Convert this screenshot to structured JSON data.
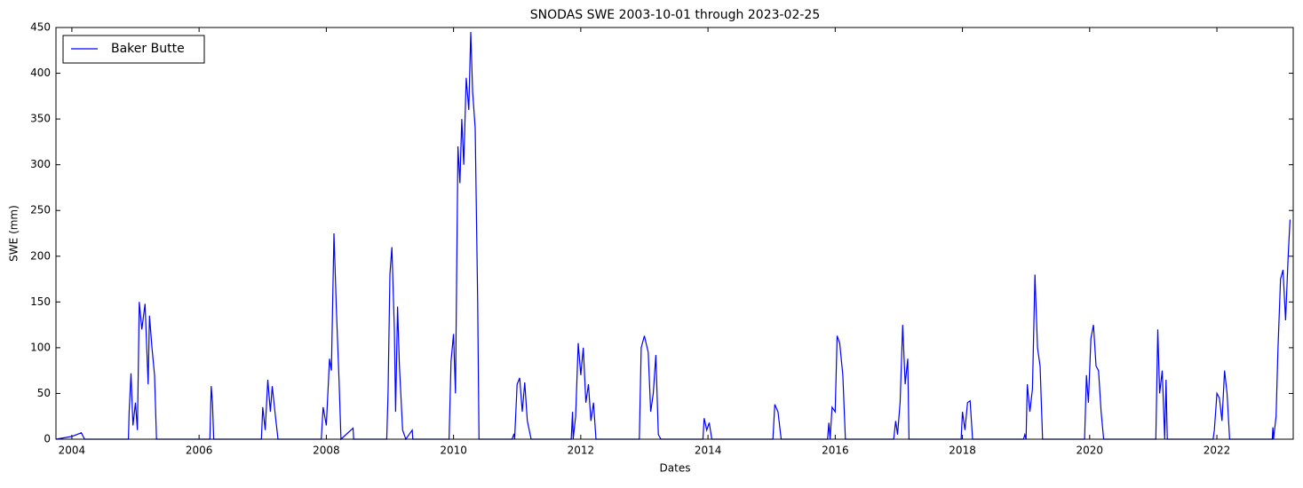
{
  "chart_data": {
    "type": "line",
    "title": "SNODAS SWE 2003-10-01 through 2023-02-25",
    "xlabel": "Dates",
    "ylabel": "SWE (mm)",
    "x": [
      2003.75,
      2004.0,
      2004.15,
      2004.2,
      2004.89,
      2004.9,
      2004.93,
      2004.96,
      2005.0,
      2005.03,
      2005.06,
      2005.1,
      2005.15,
      2005.2,
      2005.22,
      2005.26,
      2005.3,
      2005.33,
      2006.17,
      2006.19,
      2006.21,
      2006.23,
      2006.98,
      2007.0,
      2007.04,
      2007.08,
      2007.12,
      2007.15,
      2007.2,
      2007.24,
      2007.92,
      2007.95,
      2008.0,
      2008.05,
      2008.08,
      2008.12,
      2008.16,
      2008.2,
      2008.23,
      2008.42,
      2008.43,
      2008.95,
      2008.97,
      2009.0,
      2009.03,
      2009.07,
      2009.09,
      2009.12,
      2009.15,
      2009.2,
      2009.25,
      2009.35,
      2009.36,
      2009.93,
      2009.96,
      2010.0,
      2010.03,
      2010.07,
      2010.1,
      2010.13,
      2010.16,
      2010.2,
      2010.24,
      2010.27,
      2010.3,
      2010.34,
      2010.38,
      2010.4,
      2010.92,
      2010.95,
      2010.96,
      2011.0,
      2011.04,
      2011.08,
      2011.12,
      2011.16,
      2011.22,
      2011.85,
      2011.87,
      2011.88,
      2011.92,
      2011.96,
      2012.0,
      2012.04,
      2012.08,
      2012.12,
      2012.16,
      2012.2,
      2012.24,
      2012.92,
      2012.95,
      2013.0,
      2013.06,
      2013.1,
      2013.14,
      2013.18,
      2013.22,
      2013.26,
      2013.92,
      2013.94,
      2013.98,
      2014.02,
      2014.06,
      2015.02,
      2015.05,
      2015.1,
      2015.15,
      2015.88,
      2015.9,
      2015.92,
      2015.95,
      2016.0,
      2016.03,
      2016.07,
      2016.12,
      2016.16,
      2016.92,
      2016.95,
      2016.98,
      2017.02,
      2017.06,
      2017.1,
      2017.14,
      2017.16,
      2017.98,
      2018.0,
      2018.04,
      2018.08,
      2018.12,
      2018.16,
      2018.96,
      2018.98,
      2019.0,
      2019.02,
      2019.06,
      2019.1,
      2019.14,
      2019.18,
      2019.22,
      2019.26,
      2019.92,
      2019.95,
      2019.98,
      2020.02,
      2020.06,
      2020.1,
      2020.14,
      2020.18,
      2020.22,
      2021.04,
      2021.07,
      2021.1,
      2021.14,
      2021.18,
      2021.2,
      2021.22,
      2021.94,
      2021.96,
      2022.0,
      2022.04,
      2022.08,
      2022.12,
      2022.16,
      2022.2,
      2022.87,
      2022.88,
      2022.89,
      2022.93,
      2022.96,
      2023.0,
      2023.04,
      2023.08,
      2023.12,
      2023.15
    ],
    "series": [
      {
        "name": "Baker Butte",
        "color": "#0000ff",
        "values": [
          0,
          3,
          7,
          0,
          0,
          30,
          72,
          15,
          40,
          10,
          150,
          120,
          148,
          60,
          135,
          100,
          70,
          0,
          0,
          58,
          40,
          0,
          0,
          35,
          10,
          65,
          30,
          58,
          25,
          0,
          0,
          35,
          15,
          88,
          75,
          225,
          140,
          65,
          0,
          12,
          0,
          0,
          50,
          180,
          210,
          120,
          30,
          145,
          80,
          10,
          0,
          10,
          0,
          0,
          85,
          115,
          50,
          320,
          280,
          350,
          300,
          395,
          360,
          445,
          380,
          340,
          150,
          0,
          0,
          6,
          0,
          60,
          67,
          30,
          62,
          20,
          0,
          0,
          30,
          0,
          25,
          105,
          70,
          100,
          40,
          60,
          20,
          40,
          0,
          0,
          100,
          113,
          95,
          30,
          50,
          92,
          5,
          0,
          0,
          23,
          10,
          18,
          0,
          0,
          38,
          30,
          0,
          0,
          18,
          0,
          35,
          30,
          113,
          105,
          70,
          0,
          0,
          20,
          5,
          40,
          125,
          60,
          88,
          0,
          0,
          30,
          10,
          40,
          42,
          0,
          0,
          5,
          0,
          60,
          30,
          55,
          180,
          100,
          80,
          0,
          0,
          70,
          40,
          110,
          125,
          80,
          75,
          30,
          0,
          0,
          120,
          50,
          75,
          0,
          65,
          0,
          0,
          10,
          50,
          45,
          20,
          75,
          50,
          0,
          0,
          13,
          0,
          25,
          98,
          175,
          185,
          130,
          200,
          240
        ]
      }
    ],
    "xlim": [
      2003.75,
      2023.2
    ],
    "xticks": [
      2004,
      2006,
      2008,
      2010,
      2012,
      2014,
      2016,
      2018,
      2020,
      2022
    ],
    "ylim": [
      0,
      450
    ],
    "yticks": [
      0,
      50,
      100,
      150,
      200,
      250,
      300,
      350,
      400,
      450
    ],
    "legend": "upper left"
  }
}
